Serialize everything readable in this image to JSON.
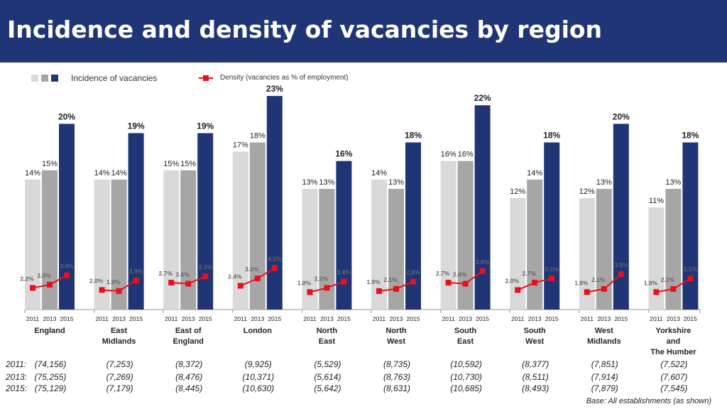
{
  "title": "Incidence and density of vacancies by region",
  "legend": {
    "incidence_label": "Incidence of  vacancies",
    "density_label": "Density (vacancies as % of employment)",
    "colors": [
      "#d9d9d9",
      "#a6a6a6",
      "#1f3576"
    ],
    "density_color": "#e8101c"
  },
  "chart_data": {
    "type": "bar",
    "years": [
      "2011",
      "2013",
      "2015"
    ],
    "categories": [
      [
        "England"
      ],
      [
        "East",
        "Midlands"
      ],
      [
        "East of",
        "England"
      ],
      [
        "London"
      ],
      [
        "North",
        "East"
      ],
      [
        "North",
        "West"
      ],
      [
        "South",
        "East"
      ],
      [
        "South",
        "West"
      ],
      [
        "West",
        "Midlands"
      ],
      [
        "Yorkshire",
        "and",
        "The Humber"
      ]
    ],
    "series": [
      {
        "name": "Incidence of vacancies",
        "values": [
          [
            14,
            15,
            20
          ],
          [
            14,
            14,
            19
          ],
          [
            15,
            15,
            19
          ],
          [
            17,
            18,
            23
          ],
          [
            13,
            13,
            16
          ],
          [
            14,
            13,
            18
          ],
          [
            16,
            16,
            22
          ],
          [
            12,
            14,
            18
          ],
          [
            12,
            13,
            20
          ],
          [
            11,
            13,
            18
          ]
        ]
      },
      {
        "name": "Density (vacancies as % of employment)",
        "values": [
          [
            2.2,
            2.5,
            3.4
          ],
          [
            2.0,
            1.9,
            2.9
          ],
          [
            2.7,
            2.6,
            3.3
          ],
          [
            2.4,
            3.1,
            4.1
          ],
          [
            1.8,
            2.2,
            2.8
          ],
          [
            1.9,
            2.1,
            2.8
          ],
          [
            2.7,
            2.6,
            3.8
          ],
          [
            2.0,
            2.7,
            3.1
          ],
          [
            1.8,
            2.1,
            3.5
          ],
          [
            1.8,
            2.1,
            3.1
          ]
        ]
      }
    ],
    "ylim": [
      0,
      25
    ]
  },
  "samples": {
    "year_labels": [
      "2011:",
      "2013:",
      "2015:"
    ],
    "values": [
      [
        "(74,156)",
        "(75,255)",
        "(75,129)"
      ],
      [
        "(7,253)",
        "(7,269)",
        "(7,179)"
      ],
      [
        "(8,372)",
        "(8,476)",
        "(8,445)"
      ],
      [
        "(9,925)",
        "(10,371)",
        "(10,630)"
      ],
      [
        "(5,529)",
        "(5,614)",
        "(5,642)"
      ],
      [
        "(8,735)",
        "(8,763)",
        "(8,631)"
      ],
      [
        "(10,592)",
        "(10,730)",
        "(10,685)"
      ],
      [
        "(8,377)",
        "(8,511)",
        "(8,493)"
      ],
      [
        "(7,851)",
        "(7,914)",
        "(7,879)"
      ],
      [
        "(7,522)",
        "(7,607)",
        "(7,545)"
      ]
    ]
  },
  "base_note": "Base: All establishments (as shown)"
}
